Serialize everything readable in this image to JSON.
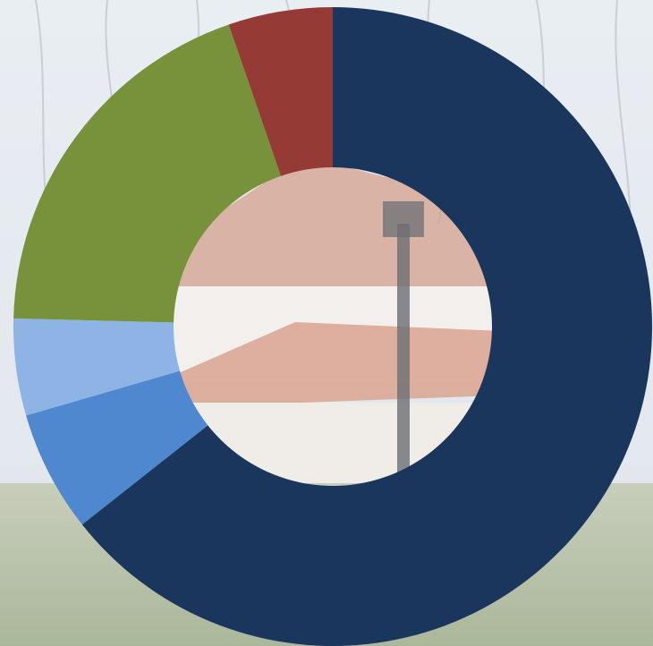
{
  "chart_data": {
    "type": "pie",
    "donut": true,
    "title": "",
    "categories": [
      "",
      "",
      "",
      "",
      ""
    ],
    "values": [
      67.0,
      6.4,
      5.1,
      20.1,
      5.5
    ],
    "colors": [
      "#1b365d",
      "#4f88cf",
      "#8db4e4",
      "#77923b",
      "#963a36"
    ],
    "start_angle_deg": 0,
    "direction": "clockwise",
    "legend": "none",
    "data_labels": false
  },
  "background": {
    "sky": "#dbe4ee",
    "roof": "#c8826a",
    "wall": "#ece7e1",
    "lawn": "#9fae86"
  }
}
